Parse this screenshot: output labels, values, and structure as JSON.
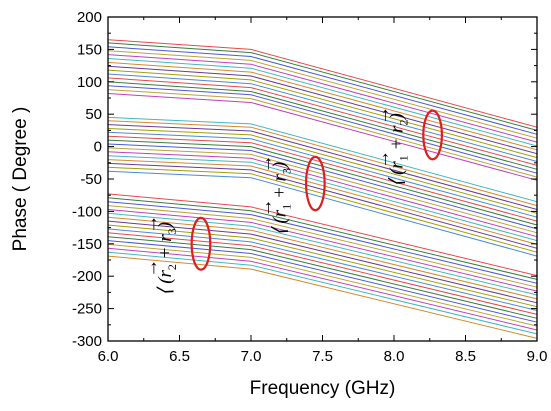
{
  "chart_data": {
    "type": "line",
    "xlabel": "Frequency (GHz)",
    "ylabel": "Phase ( Degree )",
    "xlim": [
      6.0,
      9.0
    ],
    "ylim": [
      -300,
      200
    ],
    "x_ticks": [
      "6.0",
      "6.5",
      "7.0",
      "7.5",
      "8.0",
      "8.5",
      "9.0"
    ],
    "y_ticks": [
      "200",
      "150",
      "100",
      "50",
      "0",
      "-50",
      "-100",
      "-150",
      "-200",
      "-250",
      "-300"
    ],
    "x_tick_values": [
      6.0,
      6.5,
      7.0,
      7.5,
      8.0,
      8.5,
      9.0
    ],
    "y_tick_values": [
      200,
      150,
      100,
      50,
      0,
      -50,
      -100,
      -150,
      -200,
      -250,
      -300
    ],
    "grid": false,
    "legend": "none",
    "x": [
      6.0,
      7.0,
      9.0
    ],
    "series_colors": [
      "#e8484c",
      "#3a7d3a",
      "#4a5ad8",
      "#b9a43a",
      "#c040c0",
      "#40b8c0",
      "#d48a2c",
      "#6a3a9a",
      "#a0a000",
      "#4a8ad8"
    ],
    "series_groups": [
      {
        "count": 10,
        "values": [
          [
            165,
            150,
            30
          ],
          [
            160,
            145,
            25
          ],
          [
            154,
            139,
            19
          ],
          [
            148,
            133,
            13
          ],
          [
            142,
            127,
            7
          ],
          [
            136,
            121,
            1
          ],
          [
            130,
            115,
            -5
          ],
          [
            124,
            109,
            -11
          ],
          [
            118,
            103,
            -17
          ],
          [
            112,
            97,
            -23
          ]
        ]
      },
      {
        "count": 10,
        "values": [
          [
            106,
            91,
            -29
          ],
          [
            100,
            85,
            -35
          ],
          [
            94,
            80,
            -41
          ],
          [
            88,
            74,
            -47
          ],
          [
            82,
            68,
            -52
          ],
          [
            45,
            35,
            -85
          ],
          [
            40,
            30,
            -91
          ],
          [
            34,
            24,
            -97
          ],
          [
            28,
            18,
            -103
          ],
          [
            22,
            12,
            -109
          ]
        ]
      },
      {
        "count": 10,
        "values": [
          [
            16,
            6,
            -115
          ],
          [
            10,
            0,
            -121
          ],
          [
            4,
            -6,
            -127
          ],
          [
            -2,
            -12,
            -133
          ],
          [
            -8,
            -18,
            -139
          ],
          [
            -14,
            -24,
            -145
          ],
          [
            -20,
            -30,
            -151
          ],
          [
            -26,
            -36,
            -157
          ],
          [
            -32,
            -42,
            -163
          ],
          [
            -38,
            -48,
            -169
          ]
        ]
      },
      {
        "count": 10,
        "values": [
          [
            -73,
            -93,
            -199
          ],
          [
            -79,
            -99,
            -205
          ],
          [
            -85,
            -105,
            -211
          ],
          [
            -91,
            -111,
            -217
          ],
          [
            -97,
            -117,
            -223
          ],
          [
            -103,
            -123,
            -229
          ],
          [
            -109,
            -129,
            -235
          ],
          [
            -115,
            -135,
            -241
          ],
          [
            -121,
            -141,
            -247
          ],
          [
            -127,
            -147,
            -253
          ]
        ]
      },
      {
        "count": 7,
        "values": [
          [
            -133,
            -153,
            -259
          ],
          [
            -139,
            -159,
            -265
          ],
          [
            -145,
            -165,
            -271
          ],
          [
            -151,
            -171,
            -277
          ],
          [
            -157,
            -177,
            -283
          ],
          [
            -163,
            -183,
            -289
          ],
          [
            -169,
            -189,
            -296
          ]
        ]
      }
    ],
    "annotations": [
      {
        "text": "⟨(r⃗1 + r⃗2)",
        "label_parts": [
          "(r",
          "1",
          " + r",
          "2",
          ")"
        ],
        "x": 8.27,
        "y": 18,
        "ellipse_rx_ghz": 0.13,
        "ellipse_ry_deg": 30
      },
      {
        "text": "⟨(r⃗1 + r⃗3)",
        "label_parts": [
          "(r",
          "1",
          " + r",
          "3",
          ")"
        ],
        "x": 7.45,
        "y": -57,
        "ellipse_rx_ghz": 0.13,
        "ellipse_ry_deg": 33
      },
      {
        "text": "⟨(r⃗2 + r⃗3)",
        "label_parts": [
          "(r",
          "2",
          " + r",
          "3",
          ")"
        ],
        "x": 6.65,
        "y": -150,
        "ellipse_rx_ghz": 0.13,
        "ellipse_ry_deg": 32
      }
    ],
    "annotation_color": "#e11d1d"
  }
}
